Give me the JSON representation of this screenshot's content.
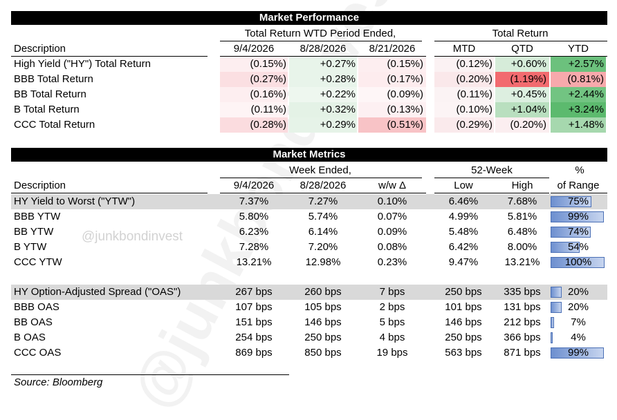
{
  "performance": {
    "title": "Market Performance",
    "group_wtd": "Total Return WTD Period Ended,",
    "group_total": "Total Return",
    "col_desc": "Description",
    "cols": [
      "9/4/2026",
      "8/28/2026",
      "8/21/2026",
      "MTD",
      "QTD",
      "YTD"
    ],
    "rows": [
      {
        "label": "High Yield (\"HY\") Total Return",
        "values": [
          "(0.15%)",
          "+0.27%",
          "(0.15%)",
          "(0.12%)",
          "+0.60%",
          "+2.57%"
        ],
        "colors": [
          "#fdeef0",
          "#e8f4ea",
          "#fdeef0",
          "#fbf2f3",
          "#d6ecd9",
          "#6cc17d"
        ]
      },
      {
        "label": "BBB Total Return",
        "values": [
          "(0.27%)",
          "+0.28%",
          "(0.17%)",
          "(0.20%)",
          "(1.19%)",
          "(0.81%)"
        ],
        "colors": [
          "#fbdfe2",
          "#e8f4ea",
          "#fdecee",
          "#fae8ea",
          "#f26b6f",
          "#f7a9ac"
        ]
      },
      {
        "label": "BB Total Return",
        "values": [
          "(0.16%)",
          "+0.22%",
          "(0.09%)",
          "(0.11%)",
          "+0.45%",
          "+2.44%"
        ],
        "colors": [
          "#fdeef0",
          "#eef7ef",
          "#fef6f7",
          "#fbf3f4",
          "#ddefe0",
          "#72c482"
        ]
      },
      {
        "label": "B Total Return",
        "values": [
          "(0.11%)",
          "+0.32%",
          "(0.13%)",
          "(0.10%)",
          "+1.04%",
          "+3.24%"
        ],
        "colors": [
          "#fef4f5",
          "#e4f2e6",
          "#fdf0f2",
          "#fcf4f5",
          "#b9dfbf",
          "#5cba6e"
        ]
      },
      {
        "label": "CCC Total Return",
        "values": [
          "(0.28%)",
          "+0.29%",
          "(0.51%)",
          "(0.29%)",
          "(0.20%)",
          "+1.48%"
        ],
        "colors": [
          "#fbdcdf",
          "#e6f3e8",
          "#f8c3c6",
          "#faeaec",
          "#fbeef0",
          "#a6d8ae"
        ]
      }
    ]
  },
  "metrics": {
    "title": "Market Metrics",
    "group_week": "Week Ended,",
    "group_52": "52-Week",
    "group_pct_top": "%",
    "col_desc": "Description",
    "cols": [
      "9/4/2026",
      "8/28/2026",
      "w/w Δ",
      "Low",
      "High",
      "of Range"
    ],
    "ytw_rows": [
      {
        "label": "HY Yield to Worst (\"YTW\")",
        "values": [
          "7.37%",
          "7.27%",
          "0.10%",
          "6.46%",
          "7.68%",
          "75%"
        ],
        "fraction": 0.75,
        "shaded": true
      },
      {
        "label": "BBB YTW",
        "values": [
          "5.80%",
          "5.74%",
          "0.07%",
          "4.99%",
          "5.81%",
          "99%"
        ],
        "fraction": 0.99,
        "shaded": false
      },
      {
        "label": "BB YTW",
        "values": [
          "6.23%",
          "6.14%",
          "0.09%",
          "5.48%",
          "6.48%",
          "74%"
        ],
        "fraction": 0.74,
        "shaded": false
      },
      {
        "label": "B YTW",
        "values": [
          "7.28%",
          "7.20%",
          "0.08%",
          "6.42%",
          "8.00%",
          "54%"
        ],
        "fraction": 0.54,
        "shaded": false
      },
      {
        "label": "CCC YTW",
        "values": [
          "13.21%",
          "12.98%",
          "0.23%",
          "9.47%",
          "13.21%",
          "100%"
        ],
        "fraction": 1.0,
        "shaded": false
      }
    ],
    "oas_rows": [
      {
        "label": "HY Option-Adjusted Spread (\"OAS\")",
        "values": [
          "267 bps",
          "260 bps",
          "7 bps",
          "250 bps",
          "335 bps",
          "20%"
        ],
        "fraction": 0.2,
        "shaded": true
      },
      {
        "label": "BBB OAS",
        "values": [
          "107 bps",
          "105 bps",
          "2 bps",
          "101 bps",
          "131 bps",
          "20%"
        ],
        "fraction": 0.2,
        "shaded": false
      },
      {
        "label": "BB OAS",
        "values": [
          "151 bps",
          "146 bps",
          "5 bps",
          "146 bps",
          "212 bps",
          "7%"
        ],
        "fraction": 0.07,
        "shaded": false
      },
      {
        "label": "B OAS",
        "values": [
          "254 bps",
          "250 bps",
          "4 bps",
          "250 bps",
          "366 bps",
          "4%"
        ],
        "fraction": 0.04,
        "shaded": false
      },
      {
        "label": "CCC OAS",
        "values": [
          "869 bps",
          "850 bps",
          "19 bps",
          "563 bps",
          "871 bps",
          "99%"
        ],
        "fraction": 0.99,
        "shaded": false
      }
    ]
  },
  "source": "Source: Bloomberg",
  "watermark": "@junkbondinvest",
  "handle": "@junkbondinvest"
}
